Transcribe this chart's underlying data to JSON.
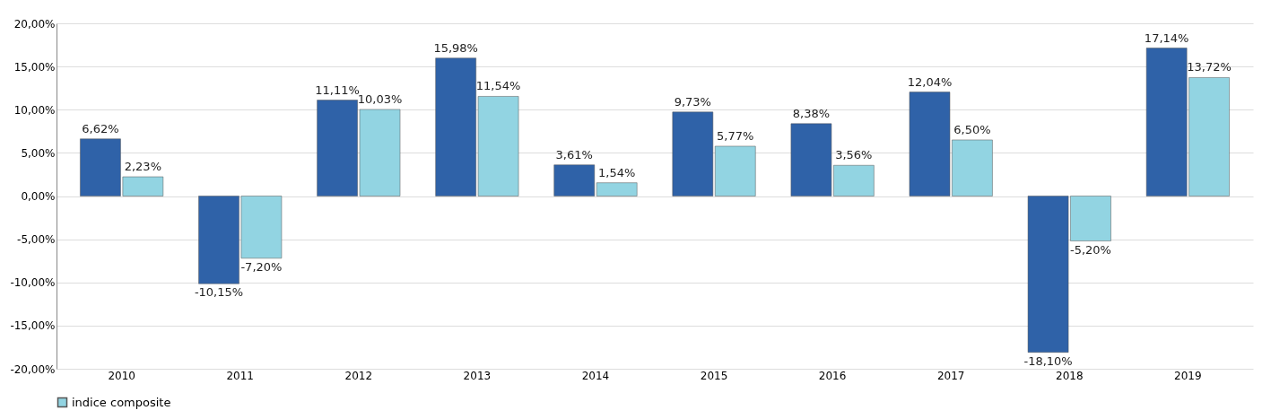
{
  "chart_data": {
    "type": "bar",
    "categories": [
      "2010",
      "2011",
      "2012",
      "2013",
      "2014",
      "2015",
      "2016",
      "2017",
      "2018",
      "2019"
    ],
    "series": [
      {
        "color": "#2f62a8",
        "values": [
          6.62,
          -10.15,
          11.11,
          15.98,
          3.61,
          9.73,
          8.38,
          12.04,
          -18.1,
          17.14
        ],
        "value_labels": [
          "6,62%",
          "-10,15%",
          "11,11%",
          "15,98%",
          "3,61%",
          "9,73%",
          "8,38%",
          "12,04%",
          "-18,10%",
          "17,14%"
        ]
      },
      {
        "name": "indice composite",
        "color": "#92d4e2",
        "values": [
          2.23,
          -7.2,
          10.03,
          11.54,
          1.54,
          5.77,
          3.56,
          6.5,
          -5.2,
          13.72
        ],
        "value_labels": [
          "2,23%",
          "-7,20%",
          "10,03%",
          "11,54%",
          "1,54%",
          "5,77%",
          "3,56%",
          "6,50%",
          "-5,20%",
          "13,72%"
        ]
      }
    ],
    "ylim": [
      -20,
      20
    ],
    "yticks": [
      {
        "value": -20,
        "label": "-20,00%"
      },
      {
        "value": -15,
        "label": "-15,00%"
      },
      {
        "value": -10,
        "label": "-10,00%"
      },
      {
        "value": -5,
        "label": "-5,00%"
      },
      {
        "value": 0,
        "label": "0,00%"
      },
      {
        "value": 5,
        "label": "5,00%"
      },
      {
        "value": 10,
        "label": "10,00%"
      },
      {
        "value": 15,
        "label": "15,00%"
      },
      {
        "value": 20,
        "label": "20,00%"
      }
    ],
    "grid": "y",
    "legend": "bottom"
  }
}
